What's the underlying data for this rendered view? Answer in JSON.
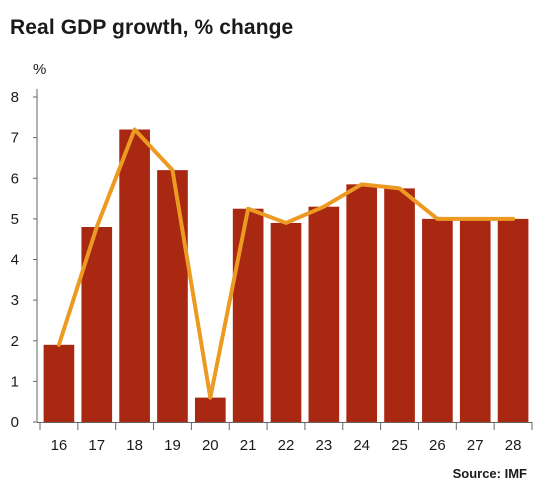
{
  "title": "Real GDP growth, % change",
  "unit": "%",
  "source": "Source: IMF",
  "colors": {
    "bar": "#a82812",
    "line": "#ec9a22",
    "axis": "#666666"
  },
  "chart_data": {
    "type": "bar",
    "title": "Real GDP growth, % change",
    "ylabel": "%",
    "xlabel": "",
    "ylim": [
      0,
      8
    ],
    "yticks": [
      0,
      1,
      2,
      3,
      4,
      5,
      6,
      7,
      8
    ],
    "grid": false,
    "categories": [
      "16",
      "17",
      "18",
      "19",
      "20",
      "21",
      "22",
      "23",
      "24",
      "25",
      "26",
      "27",
      "28"
    ],
    "series": [
      {
        "type": "bar",
        "values": [
          1.9,
          4.8,
          7.2,
          6.2,
          0.6,
          5.25,
          4.9,
          5.3,
          5.85,
          5.75,
          5.0,
          5.0,
          5.0
        ]
      },
      {
        "type": "line",
        "values": [
          1.9,
          4.8,
          7.2,
          6.2,
          0.6,
          5.25,
          4.9,
          5.3,
          5.85,
          5.75,
          5.0,
          5.0,
          5.0
        ]
      }
    ]
  }
}
